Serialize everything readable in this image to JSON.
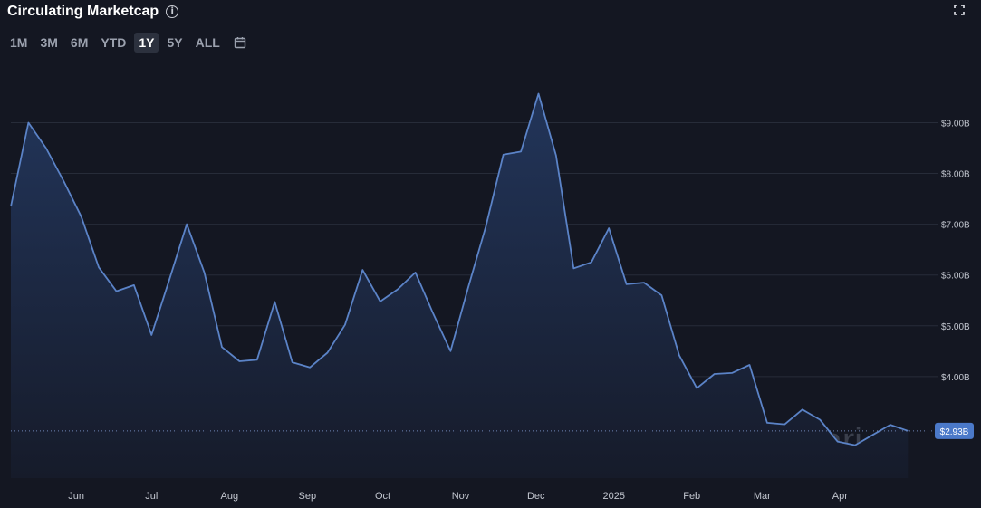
{
  "header": {
    "title": "Circulating Marketcap"
  },
  "range_buttons": [
    "1M",
    "3M",
    "6M",
    "YTD",
    "1Y",
    "5Y",
    "ALL"
  ],
  "active_range": "1Y",
  "watermark": "Messari",
  "colors": {
    "background": "#141722",
    "line": "#5b83c7",
    "area_top": "#22355a",
    "area_bottom": "#161b2a",
    "last_label_bg": "#4b79c9"
  },
  "chart_data": {
    "type": "area",
    "x": [
      "2024-05-06",
      "2024-05-13",
      "2024-05-20",
      "2024-05-27",
      "2024-06-03",
      "2024-06-10",
      "2024-06-17",
      "2024-06-24",
      "2024-07-01",
      "2024-07-08",
      "2024-07-15",
      "2024-07-22",
      "2024-07-29",
      "2024-08-05",
      "2024-08-12",
      "2024-08-19",
      "2024-08-26",
      "2024-09-02",
      "2024-09-09",
      "2024-09-16",
      "2024-09-23",
      "2024-09-30",
      "2024-10-07",
      "2024-10-14",
      "2024-10-21",
      "2024-10-28",
      "2024-11-04",
      "2024-11-11",
      "2024-11-18",
      "2024-11-25",
      "2024-12-02",
      "2024-12-09",
      "2024-12-16",
      "2024-12-23",
      "2024-12-30",
      "2025-01-06",
      "2025-01-13",
      "2025-01-20",
      "2025-01-27",
      "2025-02-03",
      "2025-02-10",
      "2025-02-17",
      "2025-02-24",
      "2025-03-03",
      "2025-03-10",
      "2025-03-17",
      "2025-03-24",
      "2025-03-31",
      "2025-04-07",
      "2025-04-14",
      "2025-04-21",
      "2025-04-28"
    ],
    "series": [
      {
        "values": [
          7.35,
          9.0,
          8.5,
          7.85,
          7.15,
          6.15,
          5.68,
          5.8,
          4.82,
          5.9,
          7.0,
          6.05,
          4.58,
          4.3,
          4.33,
          5.47,
          4.28,
          4.18,
          4.47,
          5.02,
          6.1,
          5.48,
          5.72,
          6.05,
          5.25,
          4.5,
          5.75,
          6.95,
          8.37,
          8.43,
          9.57,
          8.35,
          6.13,
          6.25,
          6.92,
          5.82,
          5.85,
          5.6,
          4.42,
          3.77,
          4.05,
          4.07,
          4.23,
          3.09,
          3.06,
          3.35,
          3.15,
          2.72,
          2.65,
          2.85,
          3.05,
          2.93
        ]
      }
    ],
    "x_tick_labels": [
      "Jun",
      "Jul",
      "Aug",
      "Sep",
      "Oct",
      "Nov",
      "Dec",
      "2025",
      "Feb",
      "Mar",
      "Apr"
    ],
    "x_tick_dates": [
      "2024-06-01",
      "2024-07-01",
      "2024-08-01",
      "2024-09-01",
      "2024-10-01",
      "2024-11-01",
      "2024-12-01",
      "2025-01-01",
      "2025-02-01",
      "2025-03-01",
      "2025-04-01"
    ],
    "y_ticks": [
      4,
      5,
      6,
      7,
      8,
      9
    ],
    "y_tick_labels": [
      "$4.00B",
      "$5.00B",
      "$6.00B",
      "$7.00B",
      "$8.00B",
      "$9.00B"
    ],
    "ylim": [
      2.0,
      9.9
    ],
    "xlim": [
      "2024-05-06",
      "2025-05-08"
    ],
    "last_value_label": "$2.93B",
    "grid": "horizontal",
    "y_axis_position": "right"
  }
}
